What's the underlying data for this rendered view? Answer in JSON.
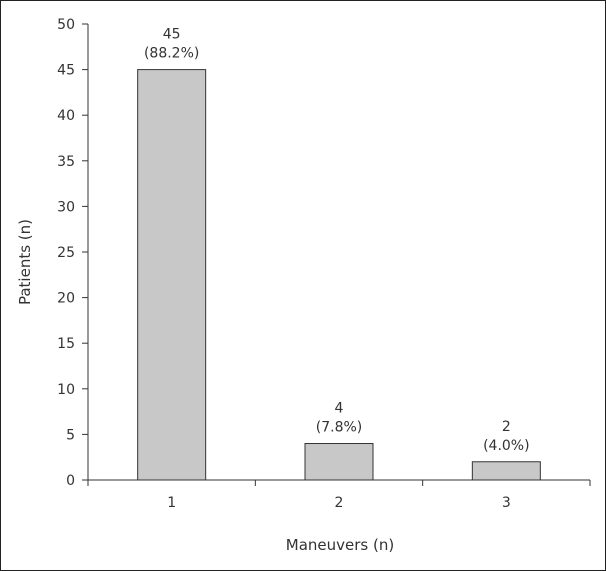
{
  "chart_data": {
    "type": "bar",
    "categories": [
      "1",
      "2",
      "3"
    ],
    "values": [
      45,
      4,
      2
    ],
    "data_labels": [
      {
        "count": "45",
        "percent": "(88.2%)"
      },
      {
        "count": "4",
        "percent": "(7.8%)"
      },
      {
        "count": "2",
        "percent": "(4.0%)"
      }
    ],
    "xlabel": "Maneuvers (n)",
    "ylabel": "Patients (n)",
    "ylim": [
      0,
      50
    ],
    "yticks": [
      0,
      5,
      10,
      15,
      20,
      25,
      30,
      35,
      40,
      45,
      50
    ],
    "grid": false,
    "legend": "none",
    "colors": {
      "bar_fill": "#c8c8c8",
      "bar_stroke": "#333333",
      "axis": "#333333"
    }
  }
}
